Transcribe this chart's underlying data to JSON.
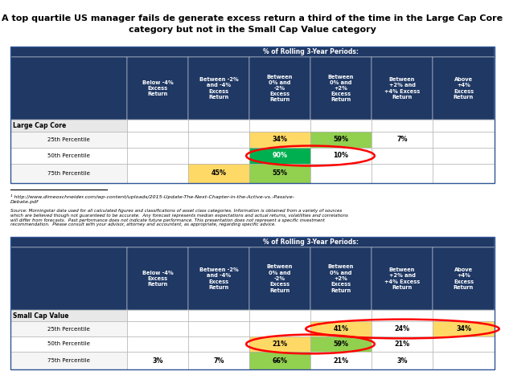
{
  "title_line1": "A top quartile US manager fails de generate excess return a third of the time in the Large Cap Core",
  "title_line2": "category but not in the Small Cap Value category",
  "header_bg": "#1F3864",
  "header_text": "#FFFFFF",
  "col_header_row1": "% of Rolling 3-Year Periods:",
  "col_headers": [
    "Below -4%\nExcess\nReturn",
    "Between -2%\nand -4%\nExcess\nReturn",
    "Between\n0% and\n-2%\nExcess\nReturn",
    "Between\n0% and\n+2%\nExcess\nReturn",
    "Between\n+2% and\n+4% Excess\nReturn",
    "Above\n+4%\nExcess\nReturn"
  ],
  "table1_category": "Large Cap Core",
  "table1_rows": [
    {
      "label": "25th Percentile",
      "values": [
        "",
        "",
        "34%",
        "59%",
        "7%",
        ""
      ]
    },
    {
      "label": "50th Percentile",
      "values": [
        "",
        "",
        "90%",
        "10%",
        "",
        ""
      ]
    },
    {
      "label": "75th Percentile",
      "values": [
        "",
        "45%",
        "55%",
        "",
        "",
        ""
      ]
    }
  ],
  "table1_cell_colors": [
    [
      "#FFFFFF",
      "#FFFFFF",
      "#FFD966",
      "#92D050",
      "#FFFFFF",
      "#FFFFFF"
    ],
    [
      "#FFFFFF",
      "#FFFFFF",
      "#00B050",
      "#FFFFFF",
      "#FFFFFF",
      "#FFFFFF"
    ],
    [
      "#FFFFFF",
      "#FFD966",
      "#92D050",
      "#FFFFFF",
      "#FFFFFF",
      "#FFFFFF"
    ]
  ],
  "table1_cell_text_colors": [
    [
      "#000000",
      "#000000",
      "#000000",
      "#000000",
      "#000000",
      "#000000"
    ],
    [
      "#000000",
      "#000000",
      "#FFFFFF",
      "#000000",
      "#000000",
      "#000000"
    ],
    [
      "#000000",
      "#000000",
      "#000000",
      "#000000",
      "#000000",
      "#000000"
    ]
  ],
  "table1_ellipse_rows": [
    1
  ],
  "table1_ellipse_cols": [
    [
      2,
      3
    ]
  ],
  "footnote1": "¹ http://www.dimeoschneider.com/wp-content/uploads/2015-Update-The-Next-Chapter-in-the-Active-vs.-Passive-\nDebate.pdf",
  "source_text": "Source: Morningstar data used for all calculated figures and classifications of asset class categories. Information is obtained from a variety of sources\nwhich are believed though not guaranteed to be accurate.  Any forecast represents median expectations and actual returns, volatilities and correlations\nwill differ from forecasts.  Past performance does not indicate future performance. This presentation does not represent a specific investment\nrecommendation.  Please consult with your advisor, attorney and accountant, as appropriate, regarding specific advice.",
  "table2_category": "Small Cap Value",
  "table2_rows": [
    {
      "label": "25th Percentile",
      "values": [
        "",
        "",
        "",
        "41%",
        "24%",
        "34%"
      ]
    },
    {
      "label": "50th Percentile",
      "values": [
        "",
        "",
        "21%",
        "59%",
        "21%",
        ""
      ]
    },
    {
      "label": "75th Percentile",
      "values": [
        "3%",
        "7%",
        "66%",
        "21%",
        "3%",
        ""
      ]
    }
  ],
  "table2_cell_colors": [
    [
      "#FFFFFF",
      "#FFFFFF",
      "#FFFFFF",
      "#FFD966",
      "#FFFFFF",
      "#FFD966"
    ],
    [
      "#FFFFFF",
      "#FFFFFF",
      "#FFD966",
      "#92D050",
      "#FFFFFF",
      "#FFFFFF"
    ],
    [
      "#FFFFFF",
      "#FFFFFF",
      "#92D050",
      "#FFFFFF",
      "#FFFFFF",
      "#FFFFFF"
    ]
  ],
  "table2_cell_text_colors": [
    [
      "#000000",
      "#000000",
      "#000000",
      "#000000",
      "#000000",
      "#000000"
    ],
    [
      "#000000",
      "#000000",
      "#000000",
      "#000000",
      "#000000",
      "#000000"
    ],
    [
      "#000000",
      "#000000",
      "#000000",
      "#000000",
      "#000000",
      "#000000"
    ]
  ],
  "table2_ellipse_rows": [
    0,
    1
  ],
  "table2_ellipse_cols": [
    [
      3,
      5
    ],
    [
      2,
      3
    ]
  ]
}
